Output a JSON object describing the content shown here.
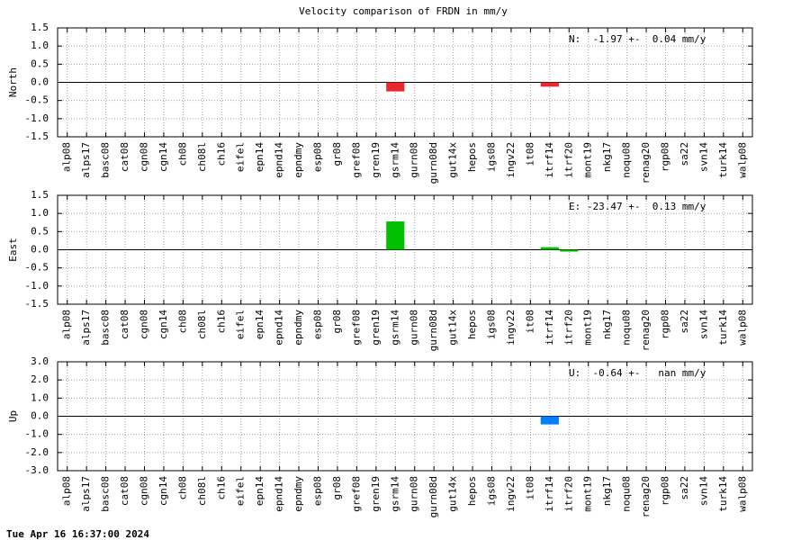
{
  "title": "Velocity comparison of FRDN in mm/y",
  "timestamp": "Tue Apr 16 16:37:00 2024",
  "chart_data": [
    {
      "type": "bar",
      "ylabel": "North",
      "annotation": "N:  -1.97 +-  0.04 mm/y",
      "color": "#e8282c",
      "categories": [
        "alp08",
        "alps17",
        "basc08",
        "cat08",
        "cgn08",
        "cgn14",
        "ch08",
        "ch08l",
        "ch16",
        "eifel",
        "epn14",
        "epnd14",
        "epndmy",
        "esp08",
        "gr08",
        "gref08",
        "gren19",
        "gsrm14",
        "gurn08",
        "gurn08d",
        "gut14x",
        "hepos",
        "igs08",
        "ingv22",
        "it08",
        "itrf14",
        "itrf20",
        "mont19",
        "nkg17",
        "noqu08",
        "renag20",
        "rgp08",
        "sa22",
        "svn14",
        "turk14",
        "walp08"
      ],
      "values": [
        null,
        null,
        null,
        null,
        null,
        null,
        null,
        null,
        null,
        null,
        null,
        null,
        null,
        null,
        null,
        null,
        null,
        -0.25,
        null,
        null,
        null,
        null,
        null,
        null,
        null,
        -0.12,
        null,
        null,
        null,
        null,
        null,
        null,
        null,
        null,
        null,
        null
      ],
      "ylim": [
        -1.5,
        1.5
      ],
      "yticks": [
        -1.5,
        {
          "value": -1,
          "label": "-1.0"
        },
        -0.5,
        {
          "value": 0,
          "label": "0.0"
        },
        0.5,
        {
          "value": 1,
          "label": "1.0"
        },
        1.5
      ],
      "grid": true
    },
    {
      "type": "bar",
      "ylabel": "East",
      "annotation": "E: -23.47 +-  0.13 mm/y",
      "color": "#00c000",
      "categories": [
        "alp08",
        "alps17",
        "basc08",
        "cat08",
        "cgn08",
        "cgn14",
        "ch08",
        "ch08l",
        "ch16",
        "eifel",
        "epn14",
        "epnd14",
        "epndmy",
        "esp08",
        "gr08",
        "gref08",
        "gren19",
        "gsrm14",
        "gurn08",
        "gurn08d",
        "gut14x",
        "hepos",
        "igs08",
        "ingv22",
        "it08",
        "itrf14",
        "itrf20",
        "mont19",
        "nkg17",
        "noqu08",
        "renag20",
        "rgp08",
        "sa22",
        "svn14",
        "turk14",
        "walp08"
      ],
      "values": [
        null,
        null,
        null,
        null,
        null,
        null,
        null,
        null,
        null,
        null,
        null,
        null,
        null,
        null,
        null,
        null,
        null,
        0.78,
        null,
        null,
        null,
        null,
        null,
        null,
        null,
        0.07,
        -0.05,
        null,
        null,
        null,
        null,
        null,
        null,
        null,
        null,
        null
      ],
      "ylim": [
        -1.5,
        1.5
      ],
      "yticks": [
        -1.5,
        {
          "value": -1,
          "label": "-1.0"
        },
        -0.5,
        {
          "value": 0,
          "label": "0.0"
        },
        0.5,
        {
          "value": 1,
          "label": "1.0"
        },
        1.5
      ],
      "grid": true
    },
    {
      "type": "bar",
      "ylabel": "Up",
      "annotation": "U:  -0.64 +-   nan mm/y",
      "color": "#0080ff",
      "categories": [
        "alp08",
        "alps17",
        "basc08",
        "cat08",
        "cgn08",
        "cgn14",
        "ch08",
        "ch08l",
        "ch16",
        "eifel",
        "epn14",
        "epnd14",
        "epndmy",
        "esp08",
        "gr08",
        "gref08",
        "gren19",
        "gsrm14",
        "gurn08",
        "gurn08d",
        "gut14x",
        "hepos",
        "igs08",
        "ingv22",
        "it08",
        "itrf14",
        "itrf20",
        "mont19",
        "nkg17",
        "noqu08",
        "renag20",
        "rgp08",
        "sa22",
        "svn14",
        "turk14",
        "walp08"
      ],
      "values": [
        null,
        null,
        null,
        null,
        null,
        null,
        null,
        null,
        null,
        null,
        null,
        null,
        null,
        null,
        null,
        null,
        null,
        null,
        null,
        null,
        null,
        null,
        null,
        null,
        null,
        -0.45,
        null,
        null,
        null,
        null,
        null,
        null,
        null,
        null,
        null,
        null
      ],
      "ylim": [
        -3,
        3
      ],
      "yticks": [
        {
          "value": -3,
          "label": "-3.0"
        },
        {
          "value": -2,
          "label": "-2.0"
        },
        {
          "value": -1,
          "label": "-1.0"
        },
        {
          "value": 0,
          "label": "0.0"
        },
        {
          "value": 1,
          "label": "1.0"
        },
        {
          "value": 2,
          "label": "2.0"
        },
        {
          "value": 3,
          "label": "3.0"
        }
      ],
      "grid": true
    }
  ]
}
